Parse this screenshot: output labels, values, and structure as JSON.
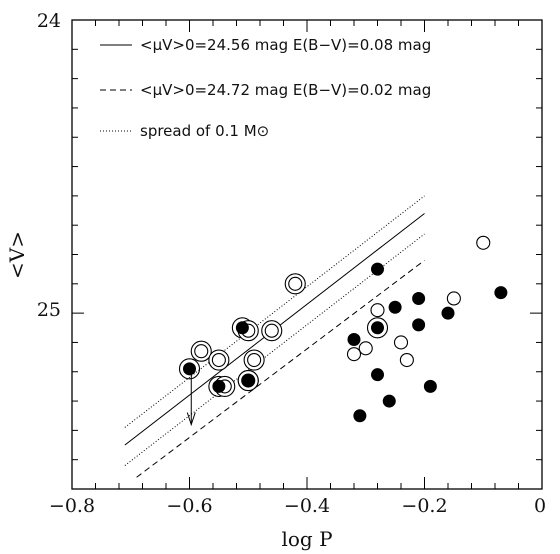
{
  "chart_data": {
    "type": "scatter",
    "title": "",
    "xlabel": "log P",
    "ylabel": "<V>",
    "xlim": [
      -0.8,
      0
    ],
    "ylim": [
      25.6,
      24
    ],
    "y_inverted": true,
    "x_tick_labels": [
      "−0.8",
      "−0.6",
      "−0.4",
      "−0.2",
      "0"
    ],
    "x_ticks": [
      -0.8,
      -0.6,
      -0.4,
      -0.2,
      0
    ],
    "y_tick_labels": [
      "24",
      "25"
    ],
    "y_ticks": [
      24,
      25
    ],
    "grid": false,
    "legend_position": "top-left",
    "legend": [
      {
        "style": "solid",
        "text": "<μV>0=24.56 mag E(B−V)=0.08 mag"
      },
      {
        "style": "dashed",
        "text": "<μV>0=24.72 mag E(B−V)=0.02 mag"
      },
      {
        "style": "dotted",
        "text": "spread of 0.1 M⊙"
      }
    ],
    "lines": [
      {
        "name": "<μV>0=24.56 mag E(B−V)=0.08 mag",
        "style": "solid",
        "x": [
          -0.71,
          -0.2
        ],
        "y": [
          25.45,
          24.66
        ]
      },
      {
        "name": "spread of 0.1 M⊙",
        "style": "dotted",
        "x": [
          -0.71,
          -0.2
        ],
        "y": [
          25.39,
          24.6
        ]
      },
      {
        "name": "spread of 0.1 M⊙",
        "style": "dotted",
        "x": [
          -0.71,
          -0.2
        ],
        "y": [
          25.52,
          24.73
        ]
      },
      {
        "name": "<μV>0=24.72 mag E(B−V)=0.02 mag",
        "style": "dashed",
        "x": [
          -0.69,
          -0.2
        ],
        "y": [
          25.56,
          24.82
        ]
      }
    ],
    "arrow": {
      "x": -0.597,
      "y_from": 25.2,
      "y_to": 25.38
    },
    "points": {
      "filled": [
        [
          -0.6,
          25.19
        ],
        [
          -0.55,
          25.25
        ],
        [
          -0.51,
          25.05
        ],
        [
          -0.5,
          25.23
        ],
        [
          -0.32,
          25.09
        ],
        [
          -0.28,
          24.85
        ],
        [
          -0.28,
          25.05
        ],
        [
          -0.25,
          24.98
        ],
        [
          -0.21,
          24.95
        ],
        [
          -0.21,
          25.04
        ],
        [
          -0.16,
          25.0
        ],
        [
          -0.07,
          24.93
        ],
        [
          -0.28,
          25.21
        ],
        [
          -0.19,
          25.25
        ],
        [
          -0.26,
          25.3
        ],
        [
          -0.31,
          25.35
        ]
      ],
      "open": [
        [
          -0.1,
          24.76
        ],
        [
          -0.15,
          24.95
        ],
        [
          -0.28,
          24.99
        ],
        [
          -0.24,
          25.1
        ],
        [
          -0.3,
          25.12
        ],
        [
          -0.32,
          25.14
        ],
        [
          -0.23,
          25.16
        ]
      ],
      "ringed_filled": [
        [
          -0.6,
          25.19
        ],
        [
          -0.55,
          25.25
        ],
        [
          -0.51,
          25.05
        ],
        [
          -0.5,
          25.23
        ],
        [
          -0.28,
          25.05
        ]
      ],
      "double_open": [
        [
          -0.58,
          25.13
        ],
        [
          -0.55,
          25.16
        ],
        [
          -0.5,
          25.06
        ],
        [
          -0.49,
          25.16
        ],
        [
          -0.46,
          25.06
        ],
        [
          -0.42,
          24.9
        ],
        [
          -0.54,
          25.25
        ],
        [
          -0.5,
          25.23
        ]
      ]
    }
  }
}
